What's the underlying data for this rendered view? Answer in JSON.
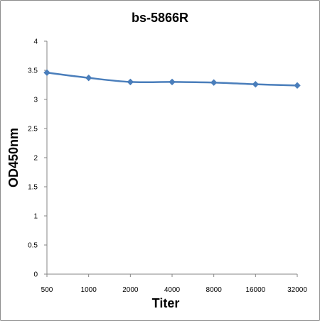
{
  "chart_data": {
    "type": "line",
    "title": "bs-5866R",
    "xlabel": "Titer",
    "ylabel": "OD450nm",
    "categories": [
      "500",
      "1000",
      "2000",
      "4000",
      "8000",
      "16000",
      "32000"
    ],
    "series": [
      {
        "values": [
          3.46,
          3.37,
          3.3,
          3.3,
          3.29,
          3.26,
          3.24
        ]
      }
    ],
    "ylim": [
      0,
      4
    ],
    "yticks": [
      "0",
      "0.5",
      "1",
      "1.5",
      "2",
      "2.5",
      "3",
      "3.5",
      "4"
    ],
    "grid": false,
    "legend": "none",
    "colors": {
      "series": "#4a7ebb",
      "axis": "#868686"
    }
  }
}
